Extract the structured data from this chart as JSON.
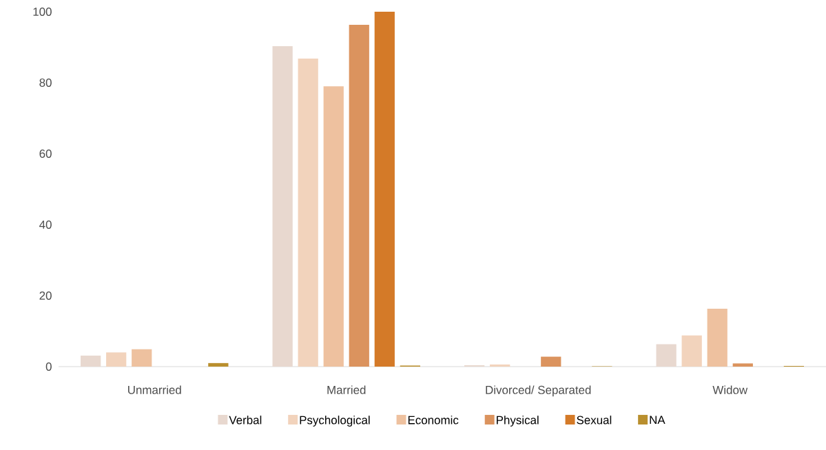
{
  "chart_data": {
    "type": "bar",
    "categories": [
      "Unmarried",
      "Married",
      "Divorced/ Separated",
      "Widow"
    ],
    "series": [
      {
        "name": "Verbal",
        "color": "#e8d8cf",
        "values": [
          3.1,
          90.3,
          0.4,
          6.3
        ]
      },
      {
        "name": "Psychological",
        "color": "#f2d3bc",
        "values": [
          4.0,
          86.8,
          0.6,
          8.8
        ]
      },
      {
        "name": "Economic",
        "color": "#eec19f",
        "values": [
          4.9,
          79.0,
          null,
          16.3
        ]
      },
      {
        "name": "Physical",
        "color": "#db935e",
        "values": [
          null,
          96.3,
          2.8,
          0.9
        ]
      },
      {
        "name": "Sexual",
        "color": "#d47a28",
        "values": [
          null,
          100,
          null,
          null
        ]
      },
      {
        "name": "NA",
        "color": "#b98f2e",
        "values": [
          1.0,
          0.3,
          0.1,
          0.2
        ]
      }
    ],
    "ylim": [
      0,
      100
    ],
    "yticks": [
      0,
      20,
      40,
      60,
      80,
      100
    ],
    "grid": false,
    "legend": "bottom"
  }
}
